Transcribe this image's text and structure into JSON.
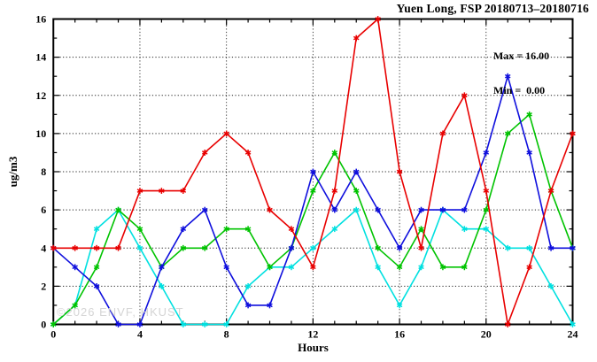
{
  "title": "Yuen Long, FSP 20180713–20180716",
  "legend": {
    "max": "Max = 16.00",
    "min": "Min =  0.00"
  },
  "watermark": "©2026 ENVF, HKUST",
  "chart_data": {
    "type": "line",
    "title": "Yuen Long, FSP 20180713–20180716",
    "xlabel": "Hours",
    "ylabel": "ug/m3",
    "xlim": [
      0,
      24
    ],
    "ylim": [
      0,
      16
    ],
    "x_major_ticks": [
      0,
      4,
      8,
      12,
      16,
      20,
      24
    ],
    "y_major_ticks": [
      0,
      2,
      4,
      6,
      8,
      10,
      12,
      14,
      16
    ],
    "x_minor_step": 1,
    "y_minor_step": 1,
    "grid_x": [
      4,
      8,
      12,
      16,
      20
    ],
    "grid_y": [
      2,
      4,
      6,
      8,
      10,
      12,
      14
    ],
    "grid_style": "dotted",
    "legend_position": "top-right",
    "max_value": 16.0,
    "min_value": 0.0,
    "marker": "asterisk",
    "x": [
      0,
      1,
      2,
      3,
      4,
      5,
      6,
      7,
      8,
      9,
      10,
      11,
      12,
      13,
      14,
      15,
      16,
      17,
      18,
      19,
      20,
      21,
      22,
      23,
      24
    ],
    "series": [
      {
        "name": "cyan-line",
        "color": "#00e0e0",
        "values": [
          0,
          1,
          5,
          6,
          4,
          2,
          0,
          0,
          0,
          2,
          3,
          3,
          4,
          5,
          6,
          3,
          1,
          3,
          6,
          5,
          5,
          4,
          4,
          2,
          0
        ]
      },
      {
        "name": "green-line",
        "color": "#00c300",
        "values": [
          0,
          1,
          3,
          6,
          5,
          3,
          4,
          4,
          5,
          5,
          3,
          4,
          7,
          9,
          7,
          4,
          3,
          5,
          3,
          3,
          6,
          10,
          11,
          7,
          4
        ]
      },
      {
        "name": "blue-line",
        "color": "#0f0fdd",
        "values": [
          4,
          3,
          2,
          0,
          0,
          3,
          5,
          6,
          3,
          1,
          1,
          4,
          8,
          6,
          8,
          6,
          4,
          6,
          6,
          6,
          9,
          13,
          9,
          4,
          4
        ]
      },
      {
        "name": "red-line",
        "color": "#e80000",
        "values": [
          4,
          4,
          4,
          4,
          7,
          7,
          7,
          9,
          10,
          9,
          6,
          5,
          3,
          7,
          15,
          16,
          8,
          4,
          10,
          12,
          7,
          0,
          3,
          7,
          10
        ]
      }
    ]
  }
}
